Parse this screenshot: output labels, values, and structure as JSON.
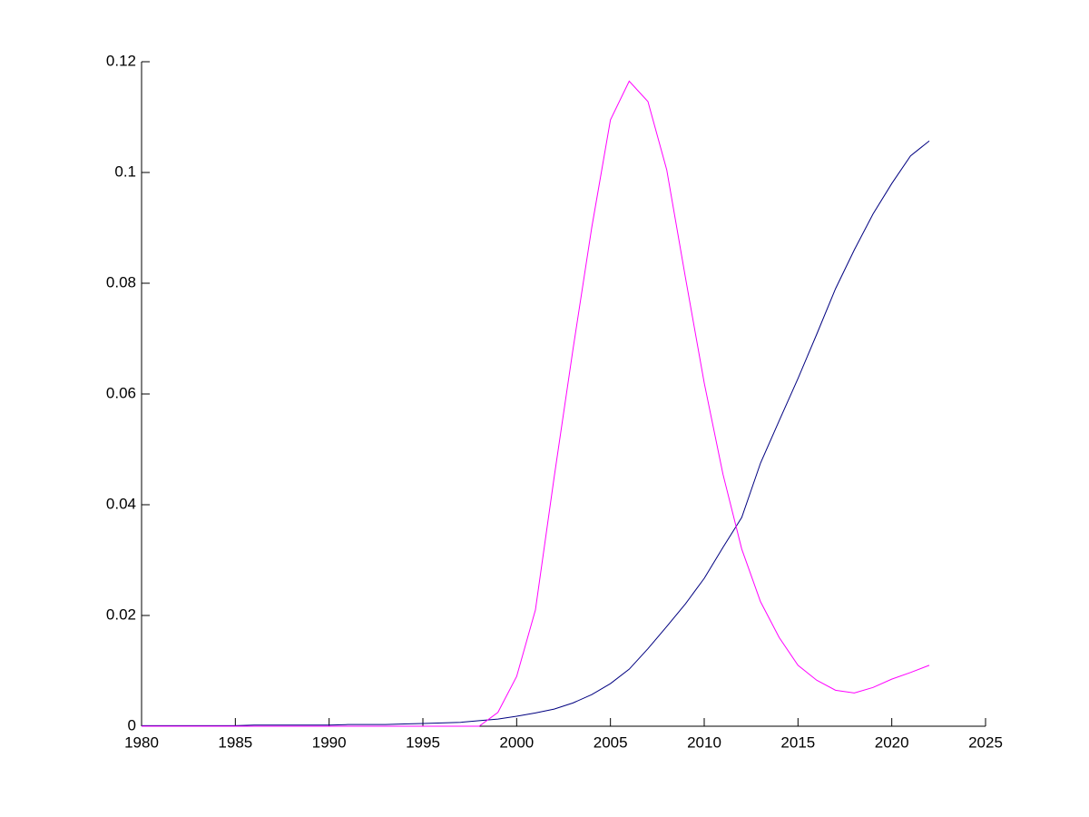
{
  "chart_data": {
    "type": "line",
    "x": [
      1980,
      1981,
      1982,
      1983,
      1984,
      1985,
      1986,
      1987,
      1988,
      1989,
      1990,
      1991,
      1992,
      1993,
      1994,
      1995,
      1996,
      1997,
      1998,
      1999,
      2000,
      2001,
      2002,
      2003,
      2004,
      2005,
      2006,
      2007,
      2008,
      2009,
      2010,
      2011,
      2012,
      2013,
      2014,
      2015,
      2016,
      2017,
      2018,
      2019,
      2020,
      2021,
      2022
    ],
    "series": [
      {
        "color": "#000080",
        "values": [
          0.0001,
          0.0001,
          0.0001,
          0.0001,
          0.0001,
          0.0001,
          0.0002,
          0.0002,
          0.0002,
          0.0002,
          0.0002,
          0.0003,
          0.0003,
          0.0003,
          0.0004,
          0.0005,
          0.0006,
          0.0007,
          0.001,
          0.0013,
          0.0018,
          0.0024,
          0.0031,
          0.0042,
          0.0057,
          0.0077,
          0.0103,
          0.014,
          0.018,
          0.0221,
          0.0267,
          0.0323,
          0.0377,
          0.0475,
          0.0552,
          0.0628,
          0.0708,
          0.079,
          0.086,
          0.0925,
          0.098,
          0.103,
          0.1057
        ]
      },
      {
        "color": "#ff00ff",
        "values": [
          0,
          0,
          0,
          0,
          0,
          0,
          0,
          0,
          0,
          0,
          0,
          0,
          0,
          0,
          0,
          0,
          0,
          0,
          0,
          0.0025,
          0.009,
          0.021,
          0.045,
          0.068,
          0.09,
          0.1095,
          0.1165,
          0.1128,
          0.1005,
          0.081,
          0.062,
          0.0455,
          0.032,
          0.0225,
          0.016,
          0.011,
          0.0083,
          0.0065,
          0.006,
          0.007,
          0.0085,
          0.0097,
          0.011
        ]
      }
    ],
    "xlim": [
      1980,
      2025
    ],
    "xticks": [
      1980,
      1985,
      1990,
      1995,
      2000,
      2005,
      2010,
      2015,
      2020,
      2025
    ],
    "ylim": [
      0,
      0.12
    ],
    "yticks": [
      0,
      0.02,
      0.04,
      0.06,
      0.08,
      0.1,
      0.12
    ]
  }
}
